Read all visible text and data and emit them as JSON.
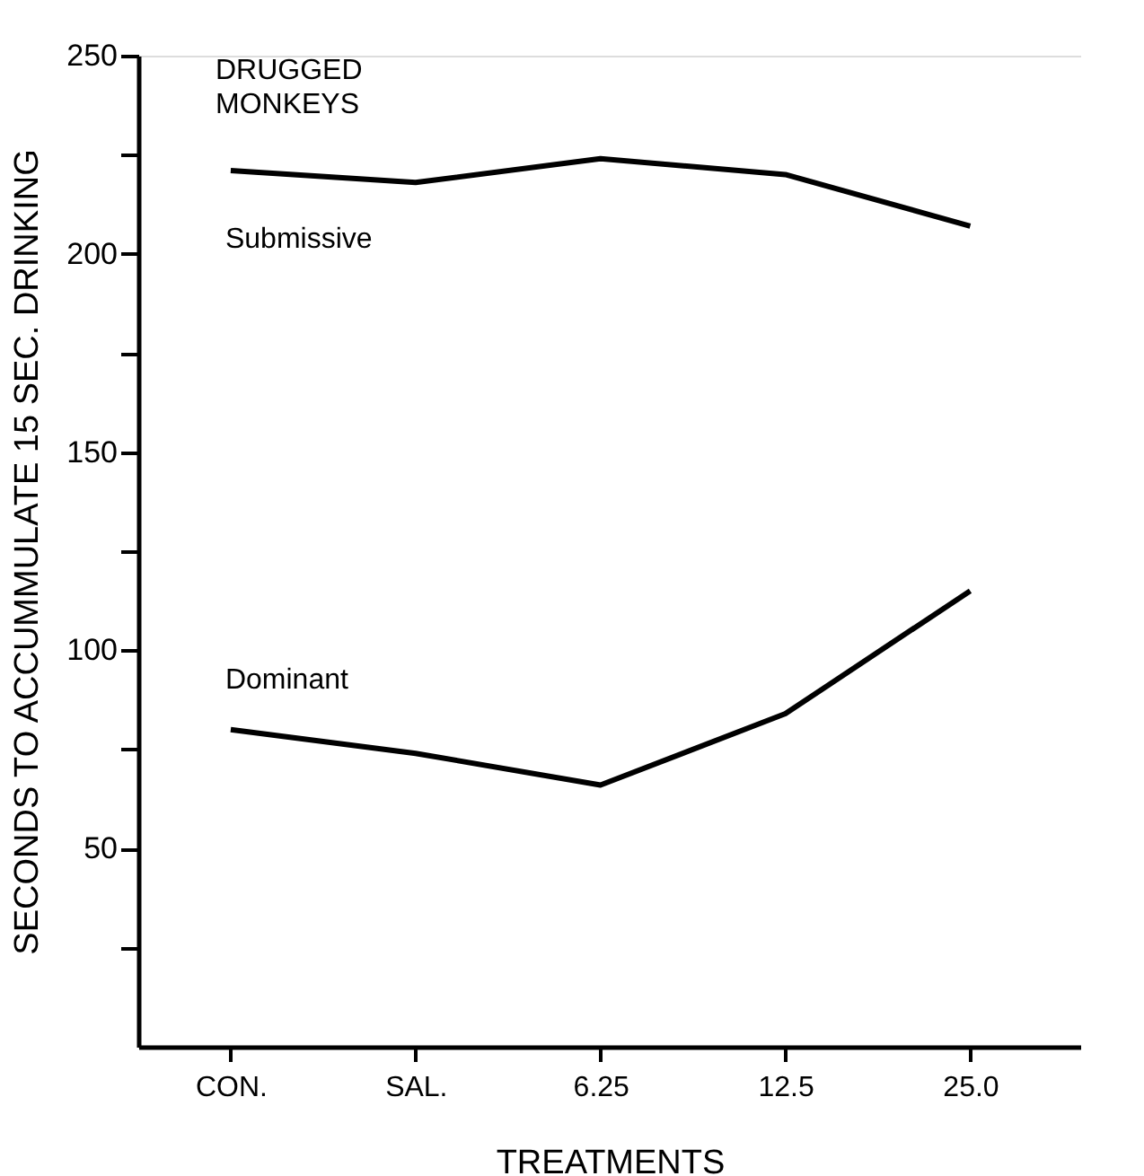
{
  "chart_data": {
    "type": "line",
    "title": "DRUGGED MONKEYS",
    "xlabel": "TREATMENTS",
    "ylabel": "SECONDS TO ACCUMMULATE 15 SEC. DRINKING",
    "categories": [
      "CON.",
      "SAL.",
      "6.25",
      "12.5",
      "25.0"
    ],
    "series": [
      {
        "name": "Submissive",
        "color": "#000000",
        "values": [
          221,
          218,
          224,
          220,
          207
        ]
      },
      {
        "name": "Dominant",
        "color": "#000000",
        "values": [
          80,
          74,
          66,
          84,
          115
        ]
      }
    ],
    "ylim": [
      0,
      250
    ],
    "yticks": [
      {
        "value": 25,
        "label": null
      },
      50,
      {
        "value": 75,
        "label": null
      },
      100,
      {
        "value": 125,
        "label": null
      },
      150,
      {
        "value": 175,
        "label": null
      },
      200,
      {
        "value": 225,
        "label": null
      },
      250
    ],
    "grid": false,
    "legend": false,
    "marker": "none",
    "line_style": "solid"
  }
}
